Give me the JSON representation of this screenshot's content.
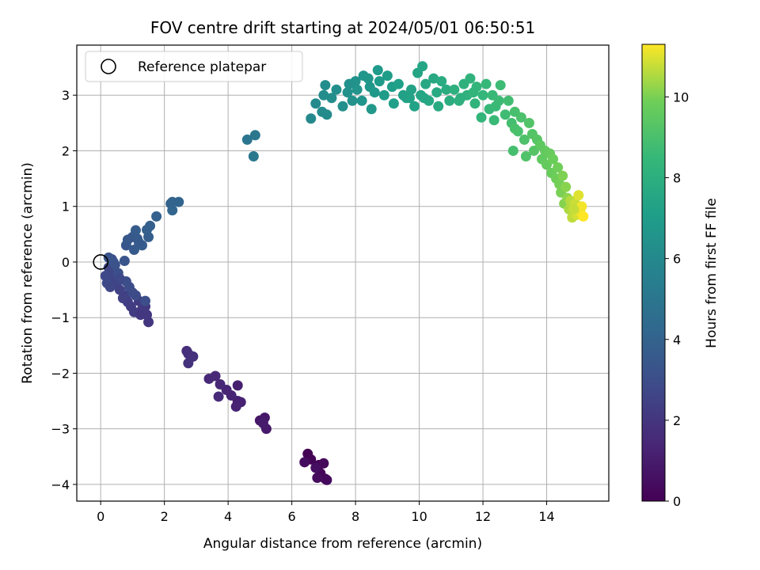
{
  "chart_data": {
    "type": "scatter",
    "title": "FOV centre drift starting at 2024/05/01 06:50:51",
    "xlabel": "Angular distance from reference (arcmin)",
    "ylabel": "Rotation from reference (arcmin)",
    "xlim": [
      -0.75,
      15.95
    ],
    "ylim": [
      -4.3,
      3.9
    ],
    "xticks": [
      0,
      2,
      4,
      6,
      8,
      10,
      12,
      14
    ],
    "yticks": [
      -4,
      -3,
      -2,
      -1,
      0,
      1,
      2,
      3
    ],
    "grid": true,
    "legend": {
      "location": "top-left",
      "entries": [
        "Reference platepar"
      ]
    },
    "reference_point": {
      "x": 0,
      "y": 0
    },
    "colorbar": {
      "label": "Hours from first FF file",
      "colormap": "viridis",
      "range": [
        0,
        11.3
      ],
      "ticks": [
        0,
        2,
        4,
        6,
        8,
        10
      ]
    },
    "points": [
      [
        6.5,
        -3.45,
        0.05
      ],
      [
        6.6,
        -3.55,
        0.1
      ],
      [
        6.85,
        -3.65,
        0.15
      ],
      [
        6.9,
        -3.8,
        0.2
      ],
      [
        7.0,
        -3.62,
        0.25
      ],
      [
        7.05,
        -3.9,
        0.3
      ],
      [
        7.1,
        -3.92,
        0.35
      ],
      [
        6.8,
        -3.88,
        0.4
      ],
      [
        6.4,
        -3.6,
        0.45
      ],
      [
        6.75,
        -3.7,
        0.5
      ],
      [
        5.0,
        -2.85,
        0.8
      ],
      [
        5.15,
        -2.8,
        0.85
      ],
      [
        5.2,
        -3.0,
        0.9
      ],
      [
        5.1,
        -2.9,
        0.95
      ],
      [
        4.3,
        -2.22,
        1.1
      ],
      [
        4.3,
        -2.5,
        1.15
      ],
      [
        4.4,
        -2.52,
        1.2
      ],
      [
        4.25,
        -2.6,
        1.25
      ],
      [
        4.1,
        -2.4,
        1.3
      ],
      [
        3.95,
        -2.3,
        1.35
      ],
      [
        3.75,
        -2.2,
        1.4
      ],
      [
        3.6,
        -2.05,
        1.45
      ],
      [
        3.4,
        -2.1,
        1.5
      ],
      [
        3.7,
        -2.42,
        1.55
      ],
      [
        2.7,
        -1.6,
        1.7
      ],
      [
        2.75,
        -1.65,
        1.75
      ],
      [
        2.9,
        -1.7,
        1.8
      ],
      [
        2.75,
        -1.82,
        1.85
      ],
      [
        1.5,
        -1.08,
        2.0
      ],
      [
        1.45,
        -0.95,
        2.05
      ],
      [
        1.4,
        -0.8,
        2.1
      ],
      [
        1.3,
        -0.85,
        2.15
      ],
      [
        1.2,
        -0.7,
        2.2
      ],
      [
        1.05,
        -0.9,
        2.25
      ],
      [
        0.95,
        -0.8,
        2.3
      ],
      [
        0.85,
        -0.72,
        2.35
      ],
      [
        0.8,
        -0.6,
        2.4
      ],
      [
        0.7,
        -0.65,
        2.45
      ],
      [
        0.6,
        -0.5,
        2.5
      ],
      [
        0.5,
        -0.4,
        2.55
      ],
      [
        0.4,
        -0.3,
        2.6
      ],
      [
        0.3,
        -0.2,
        2.65
      ],
      [
        0.25,
        -0.1,
        2.7
      ],
      [
        0.15,
        -0.25,
        2.75
      ],
      [
        0.2,
        -0.38,
        2.8
      ],
      [
        1.1,
        -0.6,
        2.85
      ],
      [
        1.0,
        -0.55,
        2.9
      ],
      [
        0.9,
        -0.45,
        2.95
      ],
      [
        0.8,
        -0.35,
        3.0
      ],
      [
        1.4,
        -0.7,
        3.05
      ],
      [
        0.55,
        -0.2,
        3.1
      ],
      [
        0.45,
        -0.05,
        3.15
      ],
      [
        0.35,
        0.05,
        3.2
      ],
      [
        0.25,
        0.08,
        3.25
      ],
      [
        0.4,
        0.0,
        3.3
      ],
      [
        0.75,
        0.02,
        3.35
      ],
      [
        0.3,
        -0.45,
        2.7
      ],
      [
        0.6,
        -0.3,
        2.8
      ],
      [
        1.25,
        -0.95,
        2.1
      ],
      [
        0.8,
        0.3,
        3.4
      ],
      [
        0.85,
        0.4,
        3.45
      ],
      [
        1.0,
        0.45,
        3.5
      ],
      [
        1.15,
        0.42,
        3.55
      ],
      [
        1.05,
        0.22,
        3.6
      ],
      [
        1.1,
        0.57,
        3.65
      ],
      [
        1.3,
        0.3,
        3.7
      ],
      [
        1.5,
        0.45,
        3.75
      ],
      [
        1.45,
        0.58,
        3.8
      ],
      [
        1.55,
        0.65,
        3.85
      ],
      [
        1.75,
        0.82,
        3.9
      ],
      [
        1.2,
        0.35,
        3.6
      ],
      [
        2.2,
        1.05,
        4.0
      ],
      [
        2.25,
        1.08,
        4.05
      ],
      [
        2.45,
        1.08,
        4.1
      ],
      [
        2.25,
        0.93,
        4.15
      ],
      [
        4.6,
        2.2,
        5.0
      ],
      [
        4.85,
        2.28,
        5.05
      ],
      [
        4.8,
        1.9,
        5.1
      ],
      [
        6.6,
        2.58,
        6.0
      ],
      [
        6.75,
        2.85,
        6.05
      ],
      [
        6.95,
        2.7,
        6.1
      ],
      [
        7.0,
        3.0,
        6.15
      ],
      [
        7.05,
        3.18,
        6.2
      ],
      [
        7.25,
        2.95,
        6.25
      ],
      [
        7.4,
        3.1,
        6.3
      ],
      [
        7.6,
        2.8,
        6.35
      ],
      [
        7.75,
        3.05,
        6.4
      ],
      [
        7.9,
        2.9,
        6.45
      ],
      [
        8.0,
        3.25,
        6.5
      ],
      [
        8.05,
        3.1,
        6.55
      ],
      [
        8.2,
        2.9,
        6.6
      ],
      [
        8.25,
        3.35,
        6.65
      ],
      [
        8.45,
        3.15,
        6.7
      ],
      [
        8.5,
        2.75,
        6.75
      ],
      [
        8.6,
        3.05,
        6.8
      ],
      [
        8.7,
        3.45,
        6.85
      ],
      [
        8.75,
        3.25,
        6.9
      ],
      [
        8.9,
        3.0,
        6.95
      ],
      [
        9.0,
        3.35,
        7.0
      ],
      [
        9.15,
        3.15,
        7.05
      ],
      [
        9.2,
        2.85,
        7.1
      ],
      [
        9.35,
        3.2,
        7.15
      ],
      [
        9.5,
        3.0,
        7.2
      ],
      [
        9.6,
        2.95,
        7.25
      ],
      [
        9.75,
        3.1,
        7.3
      ],
      [
        9.85,
        2.8,
        7.35
      ],
      [
        9.95,
        3.4,
        7.4
      ],
      [
        10.05,
        3.0,
        7.45
      ],
      [
        10.1,
        3.52,
        7.5
      ],
      [
        10.2,
        3.2,
        7.55
      ],
      [
        10.3,
        2.9,
        7.6
      ],
      [
        10.45,
        3.3,
        7.65
      ],
      [
        10.55,
        3.05,
        7.7
      ],
      [
        10.6,
        2.8,
        7.75
      ],
      [
        10.7,
        3.25,
        7.8
      ],
      [
        10.85,
        3.1,
        7.85
      ],
      [
        10.95,
        2.9,
        7.9
      ],
      [
        7.1,
        2.65,
        6.1
      ],
      [
        7.8,
        3.2,
        6.4
      ],
      [
        8.4,
        3.3,
        6.7
      ],
      [
        9.7,
        2.95,
        7.3
      ],
      [
        10.15,
        2.95,
        7.5
      ],
      [
        11.1,
        3.1,
        8.0
      ],
      [
        11.25,
        2.9,
        8.05
      ],
      [
        11.4,
        3.2,
        8.1
      ],
      [
        11.5,
        3.0,
        8.15
      ],
      [
        11.6,
        3.3,
        8.2
      ],
      [
        11.75,
        2.85,
        8.25
      ],
      [
        11.8,
        3.15,
        8.3
      ],
      [
        11.95,
        2.6,
        8.35
      ],
      [
        12.0,
        3.0,
        8.4
      ],
      [
        12.1,
        3.2,
        8.45
      ],
      [
        12.2,
        2.75,
        8.5
      ],
      [
        12.3,
        3.0,
        8.55
      ],
      [
        12.35,
        2.55,
        8.6
      ],
      [
        12.5,
        2.9,
        8.65
      ],
      [
        12.55,
        3.18,
        8.7
      ],
      [
        12.7,
        2.65,
        8.75
      ],
      [
        12.8,
        2.9,
        8.8
      ],
      [
        12.9,
        2.5,
        8.85
      ],
      [
        12.95,
        2.0,
        8.9
      ],
      [
        13.0,
        2.7,
        8.95
      ],
      [
        13.1,
        2.35,
        9.0
      ],
      [
        13.2,
        2.6,
        9.05
      ],
      [
        13.3,
        2.2,
        9.1
      ],
      [
        13.35,
        1.9,
        9.15
      ],
      [
        13.45,
        2.5,
        9.2
      ],
      [
        13.55,
        2.3,
        9.25
      ],
      [
        13.6,
        2.0,
        9.3
      ],
      [
        13.7,
        2.2,
        9.35
      ],
      [
        11.3,
        2.95,
        8.0
      ],
      [
        11.7,
        3.05,
        8.3
      ],
      [
        12.4,
        2.8,
        8.6
      ],
      [
        13.0,
        2.4,
        9.0
      ],
      [
        13.8,
        2.1,
        9.5
      ],
      [
        13.85,
        1.85,
        9.55
      ],
      [
        13.95,
        2.0,
        9.6
      ],
      [
        14.0,
        1.75,
        9.65
      ],
      [
        14.1,
        1.95,
        9.7
      ],
      [
        14.15,
        1.6,
        9.75
      ],
      [
        14.2,
        1.85,
        9.8
      ],
      [
        14.3,
        1.5,
        9.85
      ],
      [
        14.35,
        1.7,
        9.9
      ],
      [
        14.4,
        1.4,
        9.95
      ],
      [
        14.45,
        1.25,
        10.0
      ],
      [
        14.5,
        1.55,
        10.05
      ],
      [
        14.55,
        1.05,
        10.1
      ],
      [
        14.6,
        1.35,
        10.15
      ],
      [
        14.65,
        1.15,
        10.2
      ],
      [
        14.7,
        0.95,
        10.5
      ],
      [
        14.75,
        1.1,
        10.6
      ],
      [
        14.8,
        0.8,
        10.7
      ],
      [
        14.9,
        1.05,
        10.8
      ],
      [
        14.95,
        0.85,
        10.9
      ],
      [
        15.0,
        1.2,
        11.0
      ],
      [
        15.05,
        0.9,
        11.1
      ],
      [
        15.1,
        1.0,
        11.2
      ],
      [
        15.15,
        0.82,
        11.3
      ],
      [
        14.85,
        0.95,
        10.75
      ]
    ]
  }
}
